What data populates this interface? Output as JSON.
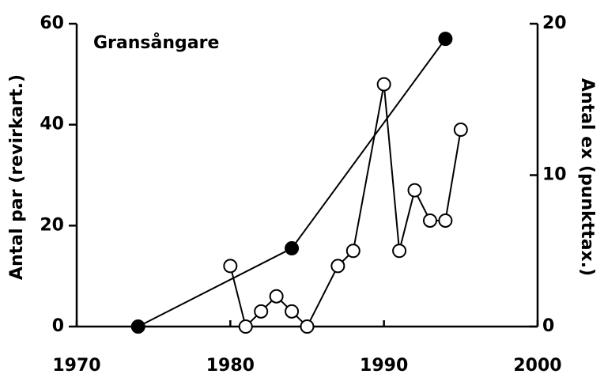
{
  "chart_data": {
    "type": "line",
    "title": "Gransångare",
    "y_label": "Antal par (revirkart.)",
    "y2_label": "Antal ex (punkttax.)",
    "xlim": [
      1970,
      2000
    ],
    "xticks": [
      1970,
      1980,
      1990,
      2000
    ],
    "ylim": [
      0,
      60
    ],
    "yticks": [
      0,
      20,
      40,
      60
    ],
    "y2lim": [
      0,
      20
    ],
    "y2ticks": [
      0,
      10,
      20
    ],
    "series": [
      {
        "color": "#000",
        "marker_fill": "#000",
        "x": [
          1974,
          1984,
          1994
        ],
        "values": [
          0,
          15.5,
          57
        ]
      },
      {
        "color": "#000",
        "marker_fill": "#fff",
        "axis": "y2",
        "x": [
          1980,
          1981,
          1982,
          1983,
          1984,
          1985,
          1987,
          1988,
          1990,
          1991,
          1992,
          1993,
          1994,
          1995
        ],
        "values": [
          4,
          0,
          1,
          2,
          1,
          0,
          4,
          5,
          16,
          5,
          9,
          7,
          7,
          13
        ]
      }
    ]
  }
}
